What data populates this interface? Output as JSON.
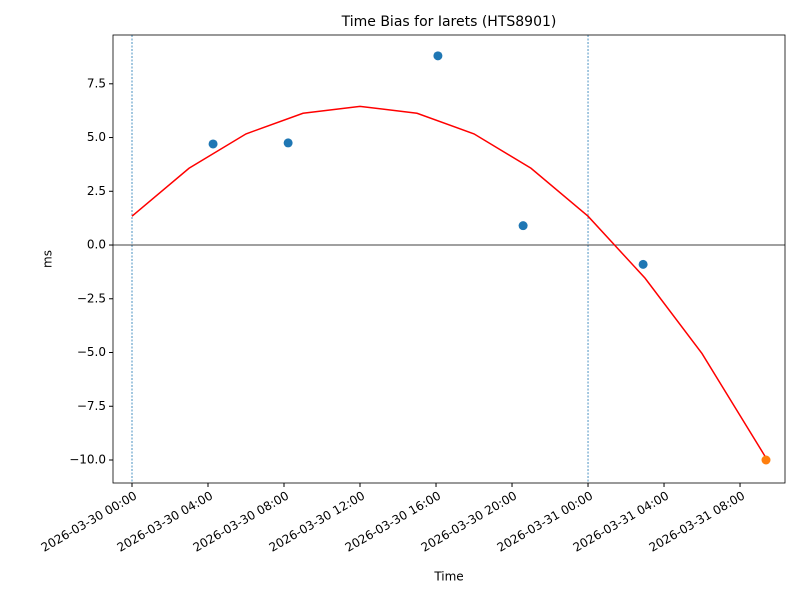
{
  "chart_data": {
    "type": "scatter",
    "title": "Time Bias for Iarets (HTS8901)",
    "x_label": "Time",
    "y_label": "ms",
    "xlim": [
      "2026-03-29 23:00",
      "2026-03-31 10:22"
    ],
    "xticks": [
      "2026-03-30 00:00",
      "2026-03-30 04:00",
      "2026-03-30 08:00",
      "2026-03-30 12:00",
      "2026-03-30 16:00",
      "2026-03-30 20:00",
      "2026-03-31 00:00",
      "2026-03-31 04:00",
      "2026-03-31 08:00"
    ],
    "ylim": [
      -11.07,
      9.77
    ],
    "yticks": [
      {
        "value": -10,
        "label": "−10.0"
      },
      {
        "value": -7.5,
        "label": "−7.5"
      },
      {
        "value": -5,
        "label": "−5.0"
      },
      {
        "value": -2.5,
        "label": "−2.5"
      },
      {
        "value": 0,
        "label": "0.0"
      },
      {
        "value": 2.5,
        "label": "2.5"
      },
      {
        "value": 5,
        "label": "5.0"
      },
      {
        "value": 7.5,
        "label": "7.5"
      }
    ],
    "vlines": [
      "2026-03-30 00:00",
      "2026-03-31 00:00"
    ],
    "vline_color": "#1f77b4",
    "hline": 0,
    "series": [
      {
        "type": "line",
        "color": "#ff0000",
        "x": [
          "2026-03-30 00:00",
          "2026-03-30 03:00",
          "2026-03-30 06:00",
          "2026-03-30 09:00",
          "2026-03-30 12:00",
          "2026-03-30 15:00",
          "2026-03-30 18:00",
          "2026-03-30 21:00",
          "2026-03-31 00:00",
          "2026-03-31 03:00",
          "2026-03-31 06:00",
          "2026-03-31 09:22"
        ],
        "values": [
          1.34,
          3.57,
          5.17,
          6.13,
          6.45,
          6.13,
          5.17,
          3.57,
          1.34,
          -1.54,
          -5.05,
          -9.9
        ]
      },
      {
        "type": "scatter",
        "color": "#1f77b4",
        "x": [
          "2026-03-30 04:16",
          "2026-03-30 08:13",
          "2026-03-30 16:06",
          "2026-03-30 20:35",
          "2026-03-31 02:54"
        ],
        "values": [
          4.7,
          4.75,
          8.8,
          0.9,
          -0.9
        ]
      },
      {
        "type": "scatter",
        "color": "#ff7f0e",
        "x": [
          "2026-03-31 09:22"
        ],
        "values": [
          -10.0
        ]
      }
    ]
  }
}
